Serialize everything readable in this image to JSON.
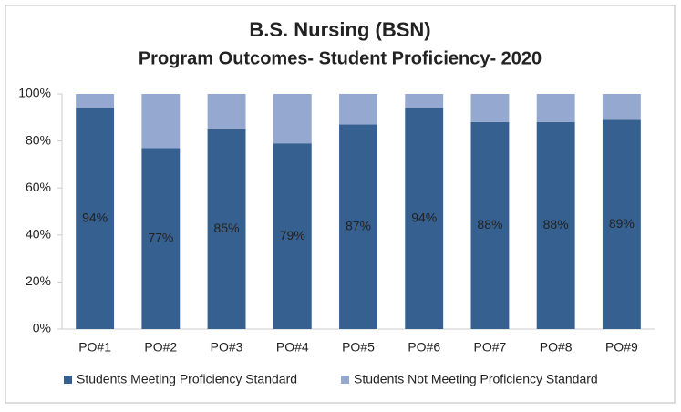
{
  "chart_data": {
    "type": "stacked_bar",
    "title": "B.S. Nursing (BSN)",
    "subtitle": "Program Outcomes- Student Proficiency- 2020",
    "categories": [
      "PO#1",
      "PO#2",
      "PO#3",
      "PO#4",
      "PO#5",
      "PO#6",
      "PO#7",
      "PO#8",
      "PO#9"
    ],
    "series": [
      {
        "name": "Students Meeting Proficiency Standard",
        "color": "#35608f",
        "values": [
          94,
          77,
          85,
          79,
          87,
          94,
          88,
          88,
          89
        ],
        "value_labels": [
          "94%",
          "77%",
          "85%",
          "79%",
          "87%",
          "94%",
          "88%",
          "88%",
          "89%"
        ]
      },
      {
        "name": "Students Not Meeting Proficiency Standard",
        "color": "#95a9d0",
        "values": [
          6,
          23,
          15,
          21,
          13,
          6,
          12,
          12,
          11
        ]
      }
    ],
    "ylim": [
      0,
      100
    ],
    "yticks": [
      {
        "value": 0,
        "label": "0%"
      },
      {
        "value": 20,
        "label": "20%"
      },
      {
        "value": 40,
        "label": "40%"
      },
      {
        "value": 60,
        "label": "60%"
      },
      {
        "value": 80,
        "label": "80%"
      },
      {
        "value": 100,
        "label": "100%"
      }
    ],
    "grid": false,
    "legend": "bottom"
  }
}
